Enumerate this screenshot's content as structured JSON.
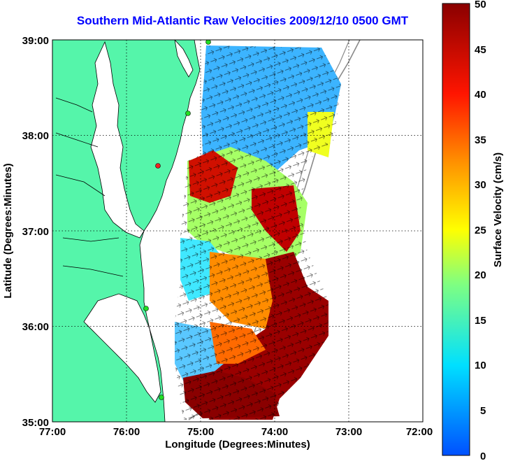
{
  "title": "Southern Mid-Atlantic Raw Velocities 2009/12/10 0500 GMT",
  "axes": {
    "xlabel": "Longitude (Degrees:Minutes)",
    "ylabel": "Latitude (Degrees:Minutes)",
    "x_ticks": [
      "77:00",
      "76:00",
      "75:00",
      "74:00",
      "73:00",
      "72:00"
    ],
    "y_ticks": [
      "39:00",
      "38:00",
      "37:00",
      "36:00",
      "35:00"
    ],
    "x_range_deg_west": [
      77,
      72
    ],
    "y_range_deg_north": [
      35,
      39
    ],
    "grid": "dotted"
  },
  "colorbar": {
    "label": "Surface Velocity (cm/s)",
    "ticks": [
      "50",
      "45",
      "40",
      "35",
      "30",
      "25",
      "20",
      "15",
      "10",
      "5",
      "0"
    ],
    "min": 0,
    "max": 50,
    "colormap": "jet"
  },
  "colors": {
    "land": "#55f5aa",
    "title": "#0000ff",
    "coastline": "#000000",
    "bathymetry": "#8a8a8a",
    "station_marker": "#22dd22",
    "station_marker_red": "#ee2222"
  },
  "stations": [
    {
      "lon": 74.9,
      "lat": 38.98,
      "color": "green"
    },
    {
      "lon": 75.1,
      "lat": 38.22,
      "color": "green"
    },
    {
      "lon": 75.55,
      "lat": 37.67,
      "color": "red"
    },
    {
      "lon": 75.7,
      "lat": 36.2,
      "color": "green"
    },
    {
      "lon": 75.5,
      "lat": 35.25,
      "color": "green"
    }
  ]
}
